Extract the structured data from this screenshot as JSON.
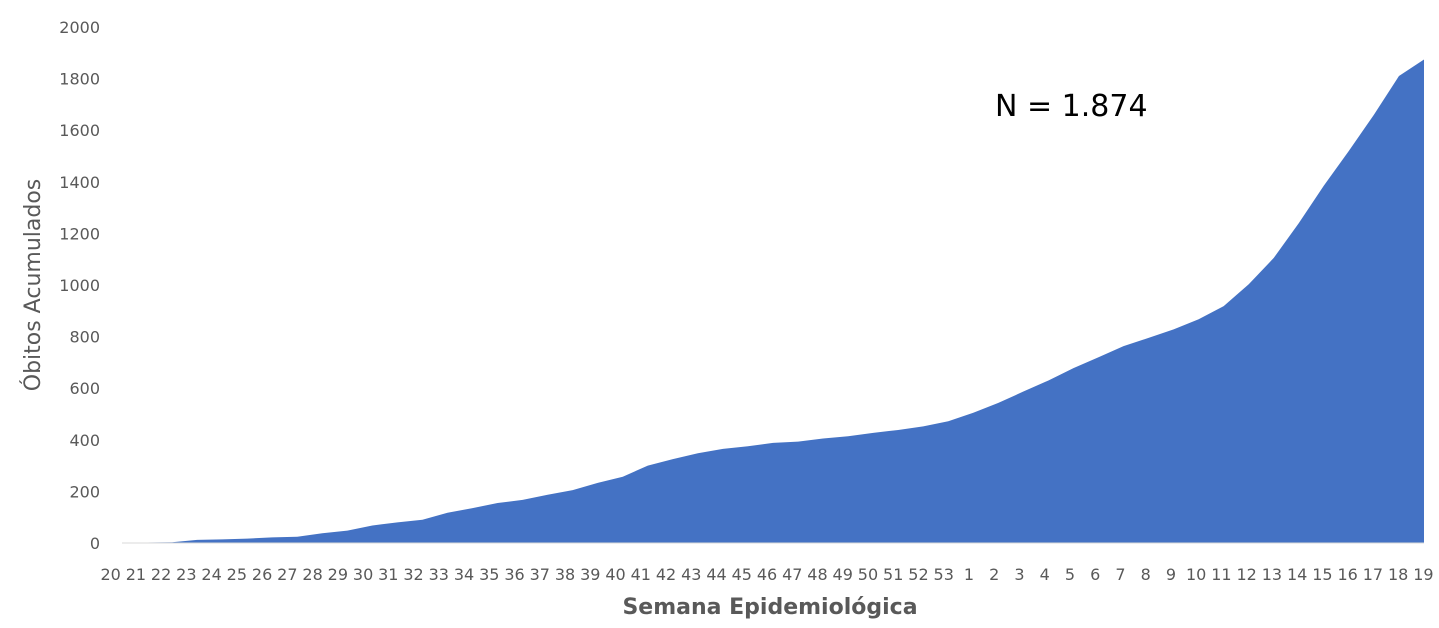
{
  "chart_data": {
    "type": "area",
    "title": "",
    "xlabel": "Semana Epidemiológica",
    "ylabel": "Óbitos Acumulados",
    "annotation": "N = 1.874",
    "ylim": [
      0,
      2000
    ],
    "yticks": [
      0,
      200,
      400,
      600,
      800,
      1000,
      1200,
      1400,
      1600,
      1800,
      2000
    ],
    "grid": false,
    "legend": "none",
    "color": "#4472C4",
    "categories": [
      "20",
      "21",
      "22",
      "23",
      "24",
      "25",
      "26",
      "27",
      "28",
      "29",
      "30",
      "31",
      "32",
      "33",
      "34",
      "35",
      "36",
      "37",
      "38",
      "39",
      "40",
      "41",
      "42",
      "43",
      "44",
      "45",
      "46",
      "47",
      "48",
      "49",
      "50",
      "51",
      "52",
      "53",
      "1",
      "2",
      "3",
      "4",
      "5",
      "6",
      "7",
      "8",
      "9",
      "10",
      "11",
      "12",
      "13",
      "14",
      "15",
      "16",
      "17",
      "18",
      "19"
    ],
    "values": [
      1,
      2,
      3,
      12,
      14,
      17,
      22,
      24,
      38,
      48,
      68,
      80,
      90,
      117,
      135,
      155,
      167,
      187,
      205,
      233,
      257,
      300,
      325,
      348,
      365,
      375,
      388,
      393,
      405,
      414,
      427,
      438,
      452,
      472,
      505,
      543,
      587,
      630,
      678,
      720,
      763,
      795,
      828,
      867,
      918,
      1003,
      1105,
      1240,
      1385,
      1520,
      1660,
      1810,
      1874
    ]
  }
}
